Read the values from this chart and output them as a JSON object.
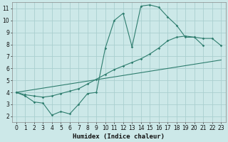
{
  "xlabel": "Humidex (Indice chaleur)",
  "bg_color": "#cce8e8",
  "grid_color": "#aacfcf",
  "line_color": "#2e7d6e",
  "xlim": [
    -0.5,
    23.5
  ],
  "ylim": [
    1.5,
    11.5
  ],
  "xticks": [
    0,
    1,
    2,
    3,
    4,
    5,
    6,
    7,
    8,
    9,
    10,
    11,
    12,
    13,
    14,
    15,
    16,
    17,
    18,
    19,
    20,
    21,
    22,
    23
  ],
  "yticks": [
    2,
    3,
    4,
    5,
    6,
    7,
    8,
    9,
    10,
    11
  ],
  "line1_x": [
    0,
    1,
    2,
    3,
    4,
    5,
    6,
    7,
    8,
    9,
    10,
    11,
    12,
    13,
    14,
    15,
    16,
    17,
    18,
    19,
    20,
    21
  ],
  "line1_y": [
    4.0,
    3.7,
    3.2,
    3.1,
    2.1,
    2.4,
    2.2,
    3.0,
    3.9,
    4.0,
    7.7,
    10.0,
    10.6,
    7.8,
    11.2,
    11.3,
    11.1,
    10.3,
    9.6,
    8.6,
    8.6,
    7.9
  ],
  "line2_x": [
    0,
    1,
    2,
    3,
    4,
    5,
    6,
    7,
    8,
    9,
    10,
    11,
    12,
    13,
    14,
    15,
    16,
    17,
    18,
    19,
    20,
    21,
    22,
    23
  ],
  "line2_y": [
    4.0,
    3.8,
    3.7,
    3.6,
    3.7,
    3.9,
    4.1,
    4.3,
    4.7,
    5.1,
    5.5,
    5.9,
    6.2,
    6.5,
    6.8,
    7.2,
    7.7,
    8.3,
    8.6,
    8.7,
    8.6,
    8.5,
    8.5,
    7.9
  ],
  "line3_x": [
    0,
    23
  ],
  "line3_y": [
    4.0,
    6.7
  ]
}
